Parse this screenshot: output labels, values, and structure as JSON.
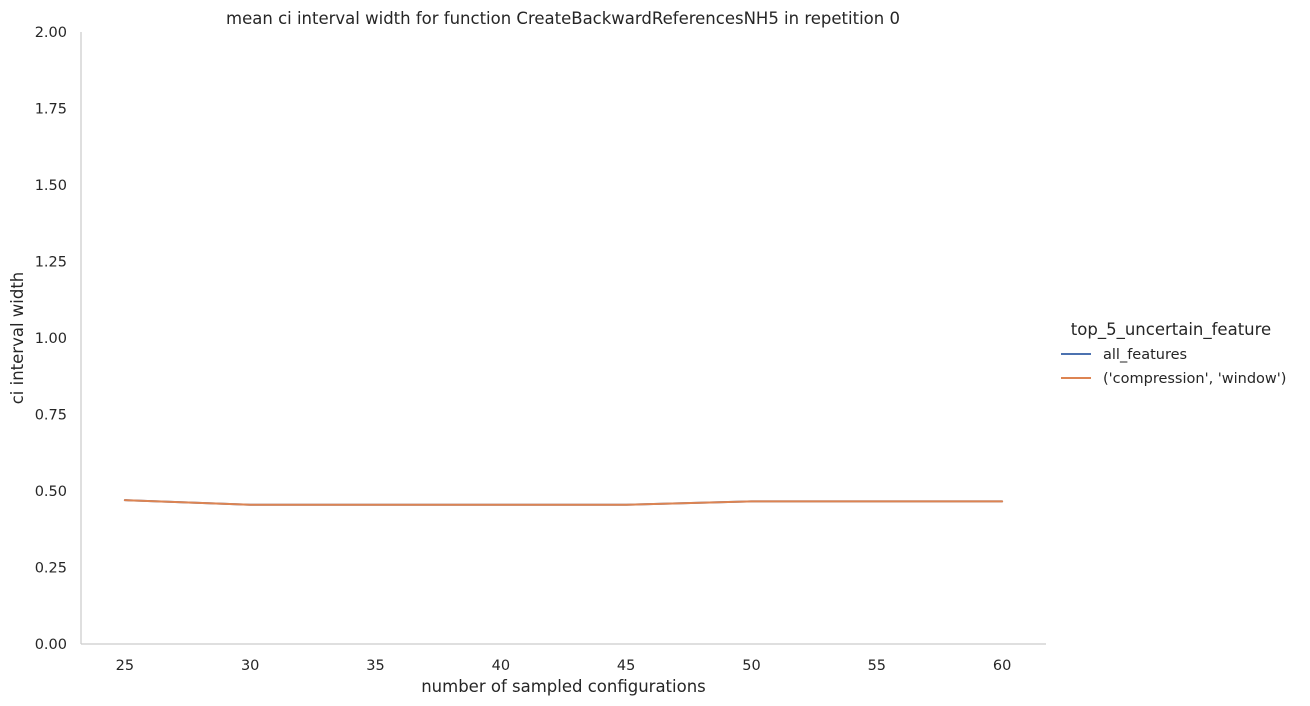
{
  "chart_data": {
    "type": "line",
    "title": "mean ci interval width for function CreateBackwardReferencesNH5 in repetition 0",
    "xlabel": "number of sampled configurations",
    "ylabel": "ci interval width",
    "x": [
      25,
      30,
      35,
      40,
      45,
      50,
      55,
      60
    ],
    "xticks": [
      25,
      30,
      35,
      40,
      45,
      50,
      55,
      60
    ],
    "xlim": [
      23.25,
      61.75
    ],
    "yticks": [
      0.0,
      0.25,
      0.5,
      0.75,
      1.0,
      1.25,
      1.5,
      1.75,
      2.0
    ],
    "ytick_labels": [
      "0.00",
      "0.25",
      "0.50",
      "0.75",
      "1.00",
      "1.25",
      "1.50",
      "1.75",
      "2.00"
    ],
    "ylim": [
      0,
      2
    ],
    "grid": false,
    "legend_title": "top_5_uncertain_feature",
    "legend_position": "right",
    "series": [
      {
        "name": "all_features",
        "color": "#4c72b0",
        "values": [
          0.47,
          0.455,
          0.455,
          0.455,
          0.455,
          0.466,
          0.466,
          0.466
        ]
      },
      {
        "name": "('compression', 'window')",
        "color": "#dd8452",
        "values": [
          0.47,
          0.455,
          0.455,
          0.455,
          0.455,
          0.466,
          0.466,
          0.466
        ]
      }
    ]
  }
}
